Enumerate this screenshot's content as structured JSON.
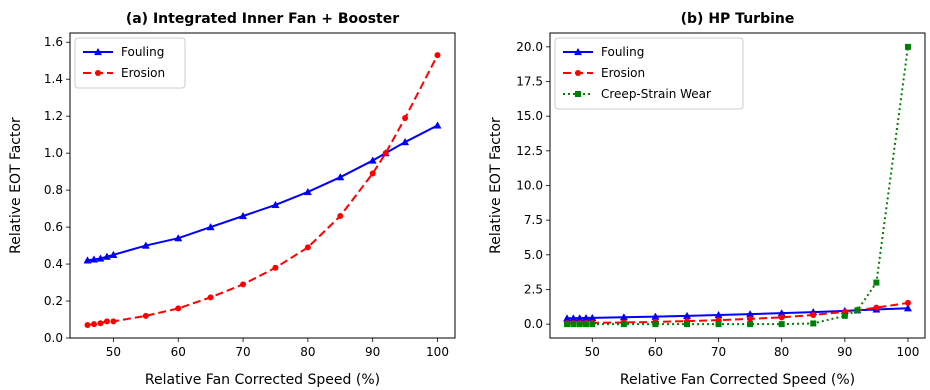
{
  "chart_data": [
    {
      "type": "line",
      "title": "(a) Integrated Inner Fan + Booster",
      "xlabel": "Relative Fan Corrected Speed (%)",
      "ylabel": "Relative EOT Factor",
      "xlim": [
        43.3,
        102.7
      ],
      "ylim": [
        0.0,
        1.65
      ],
      "xticks": [
        50,
        60,
        70,
        80,
        90,
        100
      ],
      "yticks": [
        0.0,
        0.2,
        0.4,
        0.6,
        0.8,
        1.0,
        1.2,
        1.4,
        1.6
      ],
      "grid": false,
      "legend": "top-left",
      "series": [
        {
          "name": "Fouling",
          "color": "#0000ff",
          "linestyle": "solid",
          "marker": "triangle",
          "x": [
            46,
            47,
            48,
            49,
            50,
            55,
            60,
            65,
            70,
            75,
            80,
            85,
            90,
            92,
            95,
            100
          ],
          "y": [
            0.42,
            0.425,
            0.43,
            0.44,
            0.45,
            0.5,
            0.54,
            0.6,
            0.66,
            0.72,
            0.79,
            0.87,
            0.96,
            1.0,
            1.06,
            1.15
          ]
        },
        {
          "name": "Erosion",
          "color": "#ff0000",
          "linestyle": "dashed",
          "marker": "circle",
          "x": [
            46,
            47,
            48,
            49,
            50,
            55,
            60,
            65,
            70,
            75,
            80,
            85,
            90,
            92,
            95,
            100
          ],
          "y": [
            0.07,
            0.075,
            0.08,
            0.09,
            0.09,
            0.12,
            0.16,
            0.22,
            0.29,
            0.38,
            0.49,
            0.66,
            0.89,
            1.0,
            1.19,
            1.53
          ]
        }
      ]
    },
    {
      "type": "line",
      "title": "(b) HP Turbine",
      "xlabel": "Relative Fan Corrected Speed (%)",
      "ylabel": "Relative EOT Factor",
      "xlim": [
        43.3,
        102.7
      ],
      "ylim": [
        -1.0,
        21.0
      ],
      "xticks": [
        50,
        60,
        70,
        80,
        90,
        100
      ],
      "yticks": [
        0.0,
        2.5,
        5.0,
        7.5,
        10.0,
        12.5,
        15.0,
        17.5,
        20.0
      ],
      "grid": false,
      "legend": "top-left",
      "series": [
        {
          "name": "Fouling",
          "color": "#0000ff",
          "linestyle": "solid",
          "marker": "triangle",
          "x": [
            46,
            47,
            48,
            49,
            50,
            55,
            60,
            65,
            70,
            75,
            80,
            85,
            90,
            92,
            95,
            100
          ],
          "y": [
            0.42,
            0.425,
            0.43,
            0.44,
            0.45,
            0.5,
            0.54,
            0.6,
            0.66,
            0.72,
            0.79,
            0.87,
            0.96,
            1.0,
            1.06,
            1.15
          ]
        },
        {
          "name": "Erosion",
          "color": "#ff0000",
          "linestyle": "dashed",
          "marker": "circle",
          "x": [
            46,
            47,
            48,
            49,
            50,
            55,
            60,
            65,
            70,
            75,
            80,
            85,
            90,
            92,
            95,
            100
          ],
          "y": [
            0.07,
            0.075,
            0.08,
            0.09,
            0.09,
            0.12,
            0.16,
            0.22,
            0.29,
            0.38,
            0.49,
            0.66,
            0.89,
            1.0,
            1.19,
            1.53
          ]
        },
        {
          "name": "Creep-Strain Wear",
          "color": "#008000",
          "linestyle": "dotted",
          "marker": "square",
          "x": [
            46,
            47,
            48,
            49,
            50,
            55,
            60,
            65,
            70,
            75,
            80,
            85,
            90,
            92,
            95,
            100
          ],
          "y": [
            0.0,
            0.0,
            0.0,
            0.0,
            0.0,
            0.0,
            0.0,
            0.0,
            0.0,
            0.0,
            0.0,
            0.05,
            0.6,
            1.0,
            3.0,
            20.0
          ]
        }
      ]
    }
  ]
}
